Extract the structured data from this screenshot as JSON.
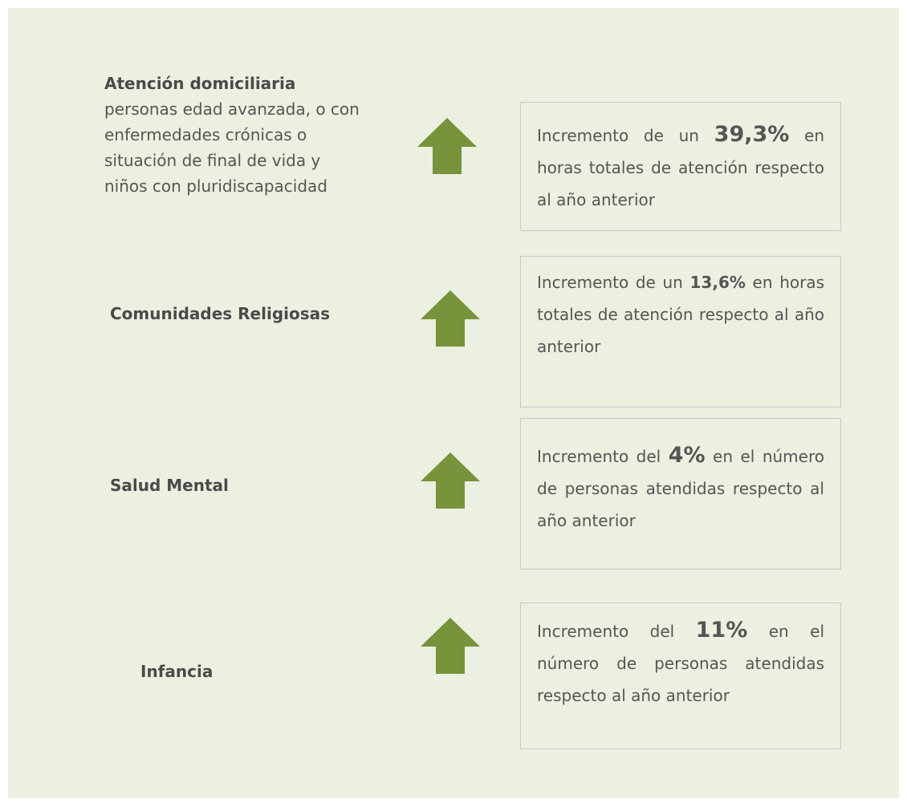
{
  "rows": [
    {
      "title": "Atención domiciliaria",
      "subtitle": "personas edad avanzada, o con enfermedades crónicas o situación de final de vida y niños con pluridiscapacidad",
      "before": "Incremento de un ",
      "figure": "39,3%",
      "after": " en horas totales de atención respecto al año anterior"
    },
    {
      "title": "Comunidades Religiosas",
      "before": "Incremento de un ",
      "figure": "13,6%",
      "after": " en horas totales de atención respecto al año anterior"
    },
    {
      "title": "Salud Mental",
      "before": "Incremento del ",
      "figure": "4%",
      "after": " en el número de personas atendidas respecto al año anterior"
    },
    {
      "title": "Infancia",
      "before": "Incremento del ",
      "figure": "11%",
      "after": " en el número de personas atendidas respecto al año anterior"
    }
  ]
}
